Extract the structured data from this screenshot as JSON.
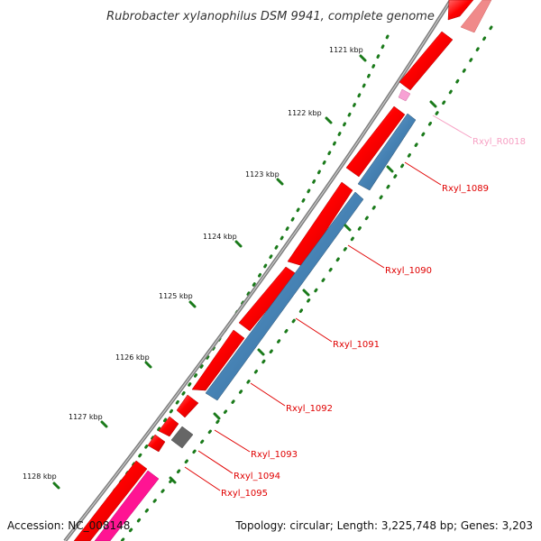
{
  "title": "Rubrobacter xylanophilus DSM 9941, complete genome",
  "footer": {
    "accession": "Accession: NC_008148",
    "summary": "Topology: circular; Length: 3,225,748 bp; Genes: 3,203"
  },
  "ticks": [
    "1121 kbp",
    "1122 kbp",
    "1123 kbp",
    "1124 kbp",
    "1125 kbp",
    "1126 kbp",
    "1127 kbp",
    "1128 kbp"
  ],
  "genes": [
    {
      "id": "Rxyl_R0018",
      "color": "#f7a1c4"
    },
    {
      "id": "Rxyl_1089",
      "color": "#e00000"
    },
    {
      "id": "Rxyl_1090",
      "color": "#e00000"
    },
    {
      "id": "Rxyl_1091",
      "color": "#e00000"
    },
    {
      "id": "Rxyl_1092",
      "color": "#e00000"
    },
    {
      "id": "Rxyl_1093",
      "color": "#e00000"
    },
    {
      "id": "Rxyl_1094",
      "color": "#e00000"
    },
    {
      "id": "Rxyl_1095",
      "color": "#e00000"
    }
  ],
  "colors": {
    "forward": "#ff0000",
    "reverse": "#4682b4",
    "pseudo": "#666666",
    "rna": "#ff1493",
    "backbone": "#888888",
    "ticks": "#1a7a1a"
  }
}
